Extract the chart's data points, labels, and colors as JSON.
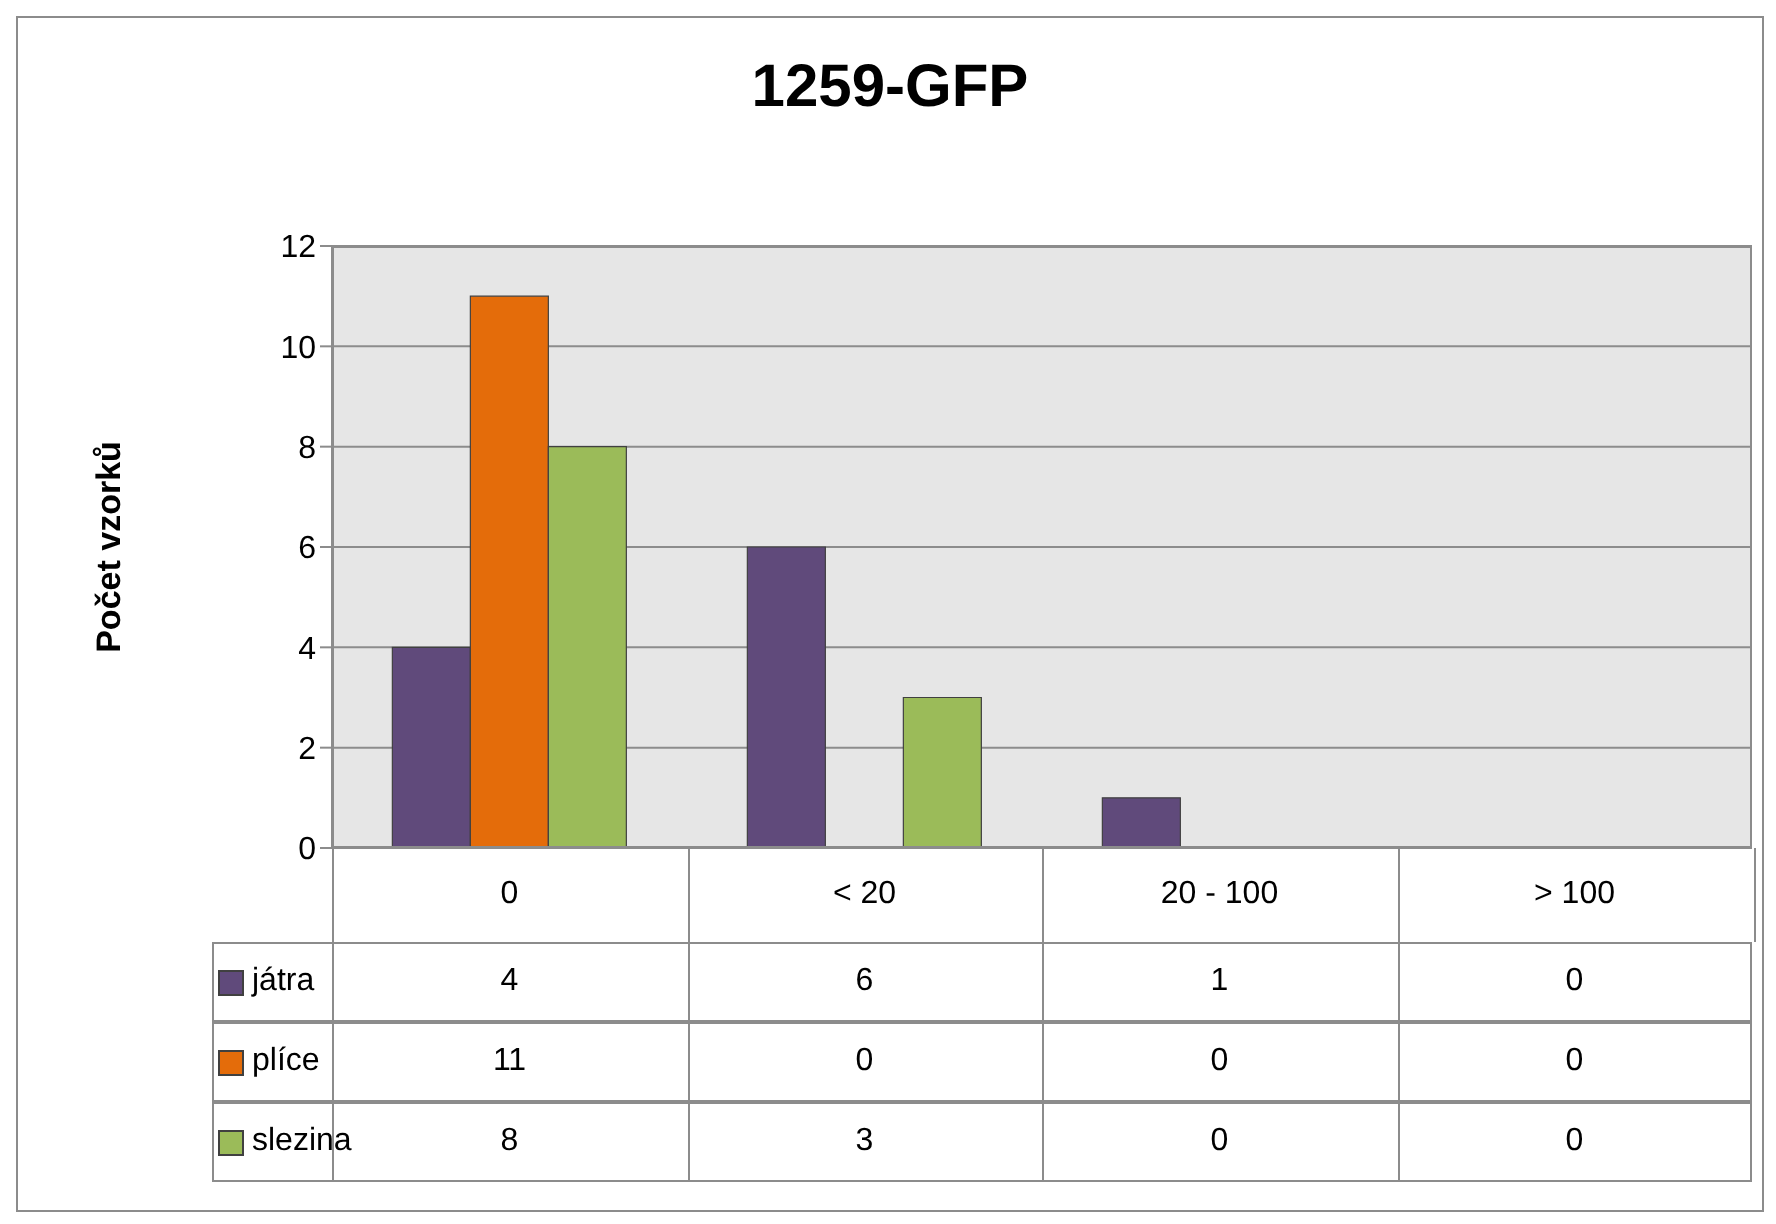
{
  "chart_data": {
    "type": "bar",
    "title": "1259-GFP",
    "ylabel": "Počet vzorků",
    "categories": [
      "0",
      "< 20",
      "20 - 100",
      "> 100"
    ],
    "series": [
      {
        "name": "játra",
        "color": "#604a7b",
        "values": [
          4,
          6,
          1,
          0
        ]
      },
      {
        "name": "plíce",
        "color": "#e46c0a",
        "values": [
          11,
          0,
          0,
          0
        ]
      },
      {
        "name": "slezina",
        "color": "#9bbb59",
        "values": [
          8,
          3,
          0,
          0
        ]
      }
    ],
    "ylim": [
      0,
      12
    ],
    "yticks": [
      0,
      2,
      4,
      6,
      8,
      10,
      12
    ],
    "grid": "y",
    "legend": "bottom",
    "data_labels": true
  }
}
